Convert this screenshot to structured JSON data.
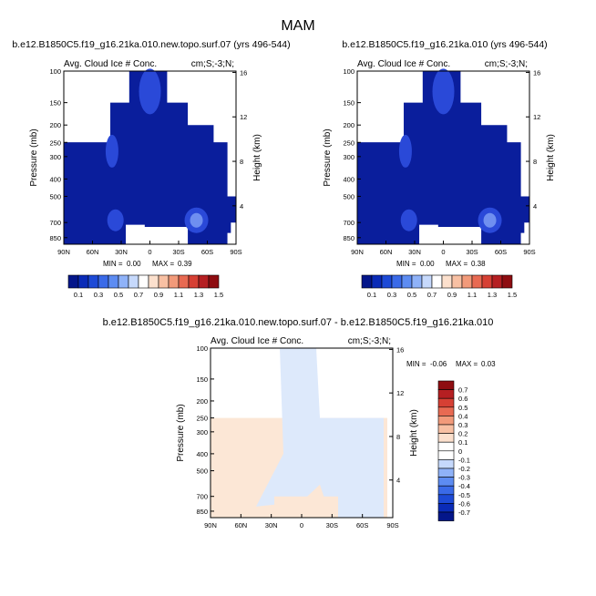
{
  "figure": {
    "title": "MAM",
    "diff_title": "b.e12.B1850C5.f19_g16.21ka.010.new.topo.surf.07 - b.e12.B1850C5.f19_g16.21ka.010"
  },
  "colors": {
    "cloud_fill": "#0a1e9c",
    "cloud_light": "#2a49d8",
    "diff_pos": "#fce7d6",
    "diff_neg": "#dde9fb",
    "fill_value": "#ffffff"
  },
  "chart_data": [
    {
      "type": "heatmap",
      "title": "b.e12.B1850C5.f19_g16.21ka.010.new.topo.surf.07 (yrs 496-544)",
      "subtitle": "Avg. Cloud Ice # Conc.",
      "units": "cm;S;-3;N;",
      "ylabel": "Pressure (mb)",
      "ylabel_right": "Height (km)",
      "x_ticks": [
        "90N",
        "60N",
        "30N",
        "0",
        "30S",
        "60S",
        "90S"
      ],
      "y_ticks": [
        "100",
        "150",
        "200",
        "250",
        "300",
        "400",
        "500",
        "700",
        "850"
      ],
      "y_ticks_right": [
        "16",
        "12",
        "8",
        "4"
      ],
      "min_label": "MIN =",
      "min_value": "0.00",
      "max_label": "MAX =",
      "max_value": "0.39",
      "colorbar_labels": [
        "0.1",
        "0.3",
        "0.5",
        "0.7",
        "0.9",
        "1.1",
        "1.3",
        "1.5"
      ],
      "colorbar_colors": [
        "#04168a",
        "#0a2bb7",
        "#1d4ad6",
        "#3a6ae8",
        "#5d8cf2",
        "#8fb2f8",
        "#c6d9fc",
        "#ffffff",
        "#fce0cd",
        "#f8c0a3",
        "#f29a7a",
        "#e86a52",
        "#d64034",
        "#b51f22",
        "#8e0d11"
      ]
    },
    {
      "type": "heatmap",
      "title": "b.e12.B1850C5.f19_g16.21ka.010 (yrs 496-544)",
      "subtitle": "Avg. Cloud Ice # Conc.",
      "units": "cm;S;-3;N;",
      "ylabel": "Pressure (mb)",
      "ylabel_right": "Height (km)",
      "x_ticks": [
        "90N",
        "60N",
        "30N",
        "0",
        "30S",
        "60S",
        "90S"
      ],
      "y_ticks": [
        "100",
        "150",
        "200",
        "250",
        "300",
        "400",
        "500",
        "700",
        "850"
      ],
      "y_ticks_right": [
        "16",
        "12",
        "8",
        "4"
      ],
      "min_label": "MIN =",
      "min_value": "0.00",
      "max_label": "MAX =",
      "max_value": "0.38",
      "colorbar_labels": [
        "0.1",
        "0.3",
        "0.5",
        "0.7",
        "0.9",
        "1.1",
        "1.3",
        "1.5"
      ],
      "colorbar_colors": [
        "#04168a",
        "#0a2bb7",
        "#1d4ad6",
        "#3a6ae8",
        "#5d8cf2",
        "#8fb2f8",
        "#c6d9fc",
        "#ffffff",
        "#fce0cd",
        "#f8c0a3",
        "#f29a7a",
        "#e86a52",
        "#d64034",
        "#b51f22",
        "#8e0d11"
      ]
    },
    {
      "type": "heatmap",
      "title": "",
      "subtitle": "Avg. Cloud Ice # Conc.",
      "units": "cm;S;-3;N;",
      "ylabel": "Pressure (mb)",
      "ylabel_right": "Height (km)",
      "x_ticks": [
        "90N",
        "60N",
        "30N",
        "0",
        "30S",
        "60S",
        "90S"
      ],
      "y_ticks": [
        "100",
        "150",
        "200",
        "250",
        "300",
        "400",
        "500",
        "700",
        "850"
      ],
      "y_ticks_right": [
        "16",
        "12",
        "8",
        "4"
      ],
      "min_label": "MIN =",
      "min_value": "-0.06",
      "max_label": "MAX =",
      "max_value": "0.03",
      "colorbar_labels": [
        "0.7",
        "0.6",
        "0.5",
        "0.4",
        "0.3",
        "0.2",
        "0.1",
        "0",
        "-0.1",
        "-0.2",
        "-0.3",
        "-0.4",
        "-0.5",
        "-0.6",
        "-0.7"
      ],
      "colorbar_colors": [
        "#8e0d11",
        "#b51f22",
        "#d64034",
        "#e86a52",
        "#f29a7a",
        "#f8c0a3",
        "#fce0cd",
        "#ffffff",
        "#ffffff",
        "#c6d9fc",
        "#8fb2f8",
        "#5d8cf2",
        "#3a6ae8",
        "#1d4ad6",
        "#0a2bb7",
        "#04168a"
      ]
    }
  ]
}
